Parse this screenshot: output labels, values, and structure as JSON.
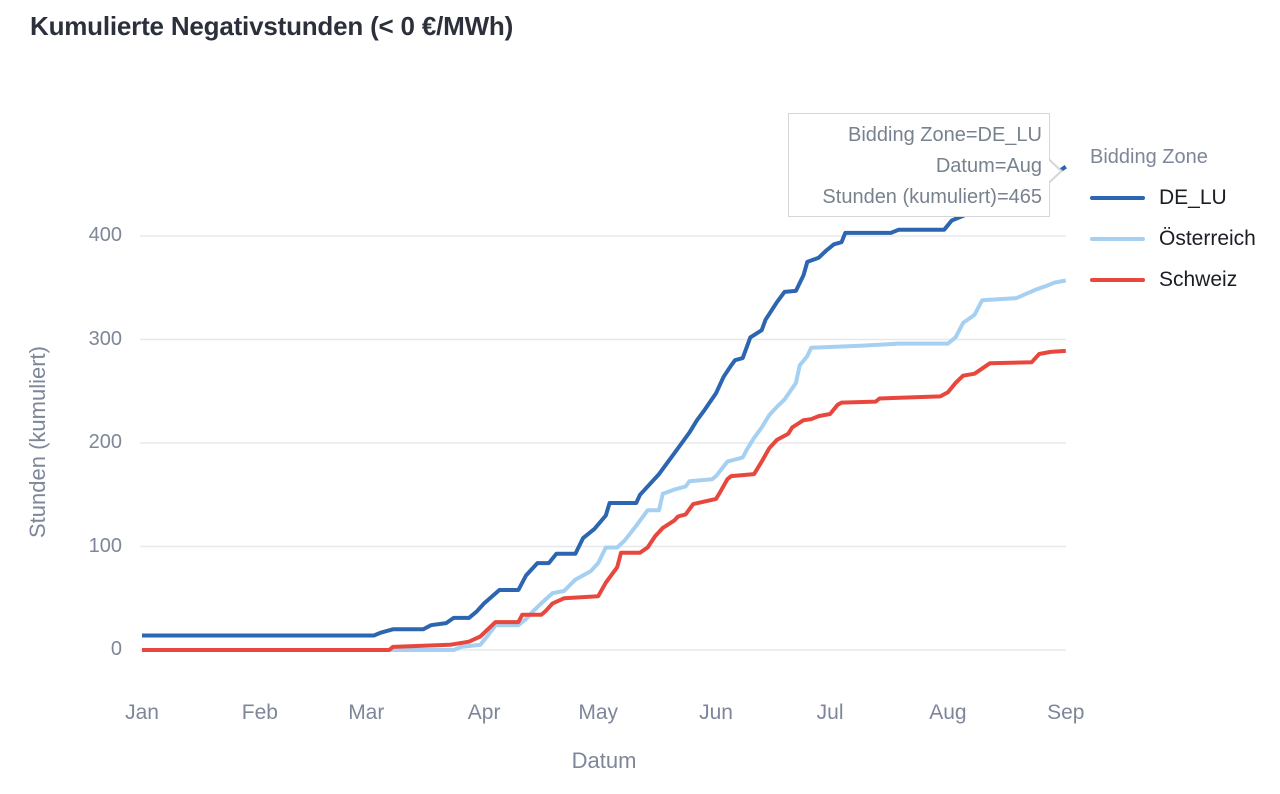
{
  "title": "Kumulierte Negativstunden (< 0 €/MWh)",
  "tooltip": {
    "lines": [
      "Bidding Zone=DE_LU",
      "Datum=Aug",
      "Stunden (kumuliert)=465"
    ]
  },
  "legend": {
    "title": "Bidding Zone",
    "items": [
      {
        "label": "DE_LU",
        "color": "#2c66b0"
      },
      {
        "label": "Österreich",
        "color": "#a5d0f2"
      },
      {
        "label": "Schweiz",
        "color": "#e8473e"
      }
    ]
  },
  "colors": {
    "grid": "#e7e8ee",
    "axis_text": "#7d8799",
    "title_text": "#2b303b",
    "tooltip_text": "#78828f"
  },
  "chart_data": {
    "type": "line",
    "title": "Kumulierte Negativstunden (< 0 €/MWh)",
    "xlabel": "Datum",
    "ylabel": "Stunden (kumuliert)",
    "x_unit": "day_of_year (0 = Jan 1)",
    "x_tick_labels": [
      "Jan",
      "Feb",
      "Mar",
      "Apr",
      "May",
      "Jun",
      "Jul",
      "Aug",
      "Sep"
    ],
    "x_tick_days": [
      0,
      31,
      59,
      90,
      120,
      151,
      181,
      212,
      243
    ],
    "y_ticks": [
      0,
      100,
      200,
      300,
      400
    ],
    "ylim": [
      0,
      470
    ],
    "grid": true,
    "legend_position": "top-right",
    "highlighted_point": {
      "series": "DE_LU",
      "x_label": "Aug",
      "value": 465
    },
    "series": [
      {
        "name": "DE_LU",
        "color": "#2c66b0",
        "points": [
          [
            0,
            14
          ],
          [
            61,
            14
          ],
          [
            63,
            17
          ],
          [
            66,
            20
          ],
          [
            74,
            20
          ],
          [
            76,
            24
          ],
          [
            80,
            26
          ],
          [
            82,
            31
          ],
          [
            86,
            31
          ],
          [
            88,
            37
          ],
          [
            90,
            45
          ],
          [
            94,
            58
          ],
          [
            99,
            58
          ],
          [
            101,
            72
          ],
          [
            104,
            84
          ],
          [
            107,
            84
          ],
          [
            109,
            93
          ],
          [
            114,
            93
          ],
          [
            116,
            108
          ],
          [
            119,
            117
          ],
          [
            122,
            130
          ],
          [
            123,
            142
          ],
          [
            130,
            142
          ],
          [
            131,
            150
          ],
          [
            136,
            170
          ],
          [
            140,
            190
          ],
          [
            142,
            200
          ],
          [
            144,
            210
          ],
          [
            146,
            222
          ],
          [
            148,
            232
          ],
          [
            151,
            248
          ],
          [
            153,
            264
          ],
          [
            155,
            275
          ],
          [
            156,
            280
          ],
          [
            158,
            282
          ],
          [
            160,
            302
          ],
          [
            163,
            309
          ],
          [
            164,
            319
          ],
          [
            167,
            336
          ],
          [
            169,
            346
          ],
          [
            172,
            347
          ],
          [
            174,
            362
          ],
          [
            175,
            375
          ],
          [
            178,
            379
          ],
          [
            180,
            386
          ],
          [
            182,
            392
          ],
          [
            184,
            394
          ],
          [
            185,
            403
          ],
          [
            197,
            403
          ],
          [
            199,
            406
          ],
          [
            211,
            406
          ],
          [
            213,
            415
          ],
          [
            219,
            424
          ],
          [
            226,
            438
          ],
          [
            232,
            450
          ],
          [
            238,
            458
          ],
          [
            240,
            458
          ],
          [
            241,
            462
          ],
          [
            243,
            467
          ]
        ]
      },
      {
        "name": "Österreich",
        "color": "#a5d0f2",
        "points": [
          [
            0,
            0
          ],
          [
            82,
            0
          ],
          [
            84,
            3
          ],
          [
            89,
            5
          ],
          [
            91,
            14
          ],
          [
            93,
            24
          ],
          [
            99,
            24
          ],
          [
            101,
            30
          ],
          [
            103,
            38
          ],
          [
            105,
            45
          ],
          [
            108,
            55
          ],
          [
            111,
            57
          ],
          [
            114,
            68
          ],
          [
            118,
            76
          ],
          [
            120,
            84
          ],
          [
            122,
            99
          ],
          [
            125,
            99
          ],
          [
            127,
            106
          ],
          [
            130,
            120
          ],
          [
            133,
            135
          ],
          [
            136,
            135
          ],
          [
            137,
            151
          ],
          [
            140,
            155
          ],
          [
            143,
            158
          ],
          [
            144,
            163
          ],
          [
            150,
            165
          ],
          [
            151,
            168
          ],
          [
            154,
            182
          ],
          [
            158,
            186
          ],
          [
            159,
            193
          ],
          [
            161,
            205
          ],
          [
            163,
            215
          ],
          [
            165,
            227
          ],
          [
            167,
            235
          ],
          [
            169,
            242
          ],
          [
            172,
            258
          ],
          [
            173,
            275
          ],
          [
            175,
            284
          ],
          [
            176,
            292
          ],
          [
            189,
            294
          ],
          [
            199,
            296
          ],
          [
            212,
            296
          ],
          [
            214,
            302
          ],
          [
            216,
            316
          ],
          [
            219,
            324
          ],
          [
            221,
            338
          ],
          [
            230,
            340
          ],
          [
            235,
            348
          ],
          [
            238,
            352
          ],
          [
            240,
            355
          ],
          [
            243,
            357
          ]
        ]
      },
      {
        "name": "Schweiz",
        "color": "#e8473e",
        "points": [
          [
            0,
            0
          ],
          [
            65,
            0
          ],
          [
            66,
            3
          ],
          [
            81,
            5
          ],
          [
            86,
            8
          ],
          [
            89,
            13
          ],
          [
            93,
            27
          ],
          [
            99,
            27
          ],
          [
            100,
            34
          ],
          [
            105,
            34
          ],
          [
            106,
            37
          ],
          [
            108,
            45
          ],
          [
            111,
            50
          ],
          [
            120,
            52
          ],
          [
            122,
            65
          ],
          [
            125,
            80
          ],
          [
            126,
            94
          ],
          [
            131,
            94
          ],
          [
            133,
            99
          ],
          [
            135,
            110
          ],
          [
            137,
            118
          ],
          [
            140,
            125
          ],
          [
            141,
            129
          ],
          [
            143,
            131
          ],
          [
            145,
            141
          ],
          [
            151,
            146
          ],
          [
            152,
            152
          ],
          [
            154,
            165
          ],
          [
            155,
            168
          ],
          [
            161,
            170
          ],
          [
            163,
            182
          ],
          [
            165,
            195
          ],
          [
            167,
            203
          ],
          [
            170,
            209
          ],
          [
            171,
            215
          ],
          [
            174,
            222
          ],
          [
            176,
            223
          ],
          [
            178,
            226
          ],
          [
            181,
            228
          ],
          [
            183,
            237
          ],
          [
            184,
            239
          ],
          [
            193,
            240
          ],
          [
            194,
            243
          ],
          [
            210,
            245
          ],
          [
            212,
            249
          ],
          [
            214,
            258
          ],
          [
            216,
            265
          ],
          [
            219,
            267
          ],
          [
            223,
            277
          ],
          [
            234,
            278
          ],
          [
            236,
            286
          ],
          [
            239,
            288
          ],
          [
            243,
            289
          ]
        ]
      }
    ]
  }
}
